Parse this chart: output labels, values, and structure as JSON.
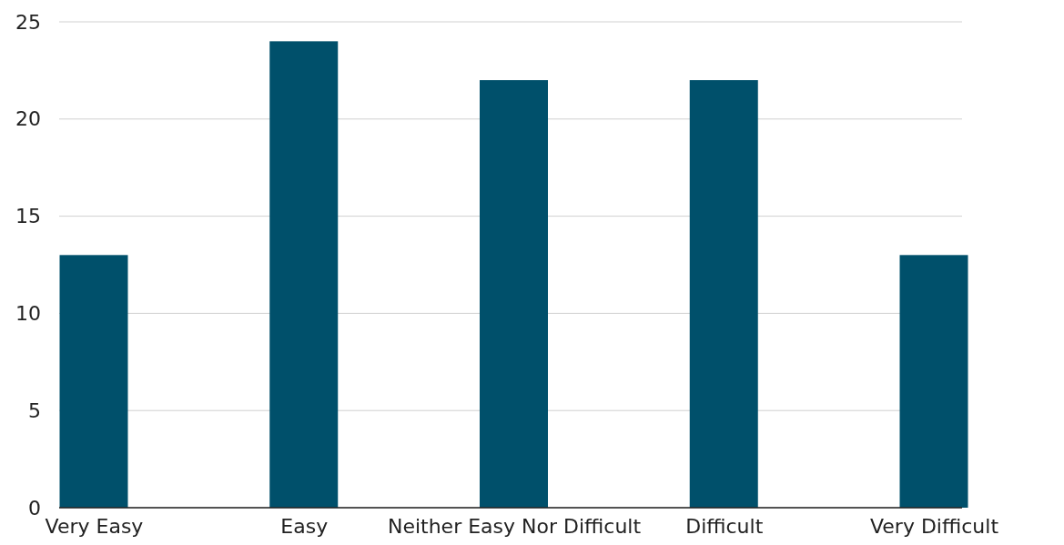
{
  "chart_data": {
    "type": "bar",
    "categories": [
      "Very Easy",
      "Easy",
      "Neither Easy Nor Difficult",
      "Difficult",
      "Very Difficult"
    ],
    "values": [
      13,
      24,
      22,
      22,
      13
    ],
    "color": "#00506b",
    "ylim": [
      0,
      25
    ],
    "yticks": [
      0,
      5,
      10,
      15,
      20,
      25
    ],
    "grid": "y"
  }
}
